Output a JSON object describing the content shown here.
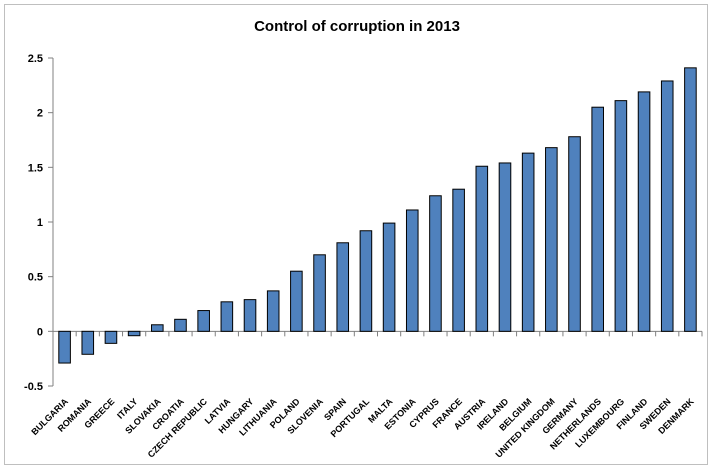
{
  "chart_data": {
    "type": "bar",
    "title": "Control of corruption in 2013",
    "xlabel": "",
    "ylabel": "",
    "ylim": [
      -0.5,
      2.5
    ],
    "yticks": [
      "-0.5",
      "0",
      "0.5",
      "1",
      "1.5",
      "2",
      "2.5"
    ],
    "grid": false,
    "legend": "none",
    "bar_color": "#4f81bd",
    "categories": [
      "BULGARIA",
      "ROMANIA",
      "GREECE",
      "ITALY",
      "SLOVAKIA",
      "CROATIA",
      "CZECH REPUBLIC",
      "LATVIA",
      "HUNGARY",
      "LITHUANIA",
      "POLAND",
      "SLOVENIA",
      "SPAIN",
      "PORTUGAL",
      "MALTA",
      "ESTONIA",
      "CYPRUS",
      "FRANCE",
      "AUSTRIA",
      "IRELAND",
      "BELGIUM",
      "UNITED KINGDOM",
      "GERMANY",
      "NETHERLANDS",
      "LUXEMBOURG",
      "FINLAND",
      "SWEDEN",
      "DENMARK"
    ],
    "values": [
      -0.29,
      -0.21,
      -0.11,
      -0.04,
      0.06,
      0.11,
      0.19,
      0.27,
      0.29,
      0.37,
      0.55,
      0.7,
      0.81,
      0.92,
      0.99,
      1.11,
      1.24,
      1.3,
      1.51,
      1.54,
      1.63,
      1.68,
      1.78,
      2.05,
      2.11,
      2.19,
      2.29,
      2.41
    ]
  }
}
